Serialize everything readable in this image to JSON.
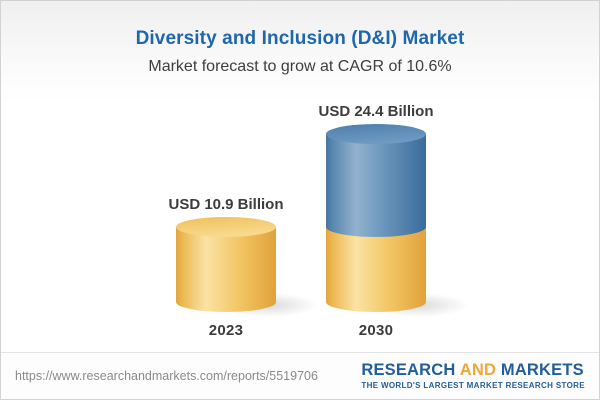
{
  "header": {
    "title": "Diversity and Inclusion (D&I) Market",
    "subtitle": "Market forecast to grow at CAGR of 10.6%"
  },
  "chart_data": {
    "type": "bar",
    "style": "3d-cylinder",
    "title": "Diversity and Inclusion (D&I) Market",
    "subtitle": "Market forecast to grow at CAGR of 10.6%",
    "cagr_percent": 10.6,
    "unit": "USD Billion",
    "categories": [
      "2023",
      "2030"
    ],
    "values": [
      10.9,
      24.4
    ],
    "value_labels": [
      "USD 10.9 Billion",
      "USD 24.4 Billion"
    ],
    "ylim": [
      0,
      24.4
    ],
    "grid": false,
    "legend": false,
    "bars": [
      {
        "category": "2023",
        "total": 10.9,
        "label": "USD 10.9 Billion",
        "segments": [
          {
            "value": 10.9,
            "color": "yellow"
          }
        ]
      },
      {
        "category": "2030",
        "total": 24.4,
        "label": "USD 24.4 Billion",
        "segments": [
          {
            "value": 10.9,
            "color": "yellow"
          },
          {
            "value": 13.5,
            "color": "blue"
          }
        ]
      }
    ]
  },
  "colors": {
    "title_blue": "#1E67AD",
    "text_dark": "#3C3C3C",
    "bar_yellow": "#F2C462",
    "bar_blue": "#5B8DB8",
    "logo_blue": "#235E9A",
    "logo_orange": "#F0A73B",
    "url_gray": "#8A8A8A"
  },
  "footer": {
    "url": "https://www.researchandmarkets.com/reports/5519706",
    "logo": {
      "word1": "RESEARCH",
      "word2": "AND",
      "word3": "MARKETS",
      "tagline": "THE WORLD'S LARGEST MARKET RESEARCH STORE"
    }
  }
}
